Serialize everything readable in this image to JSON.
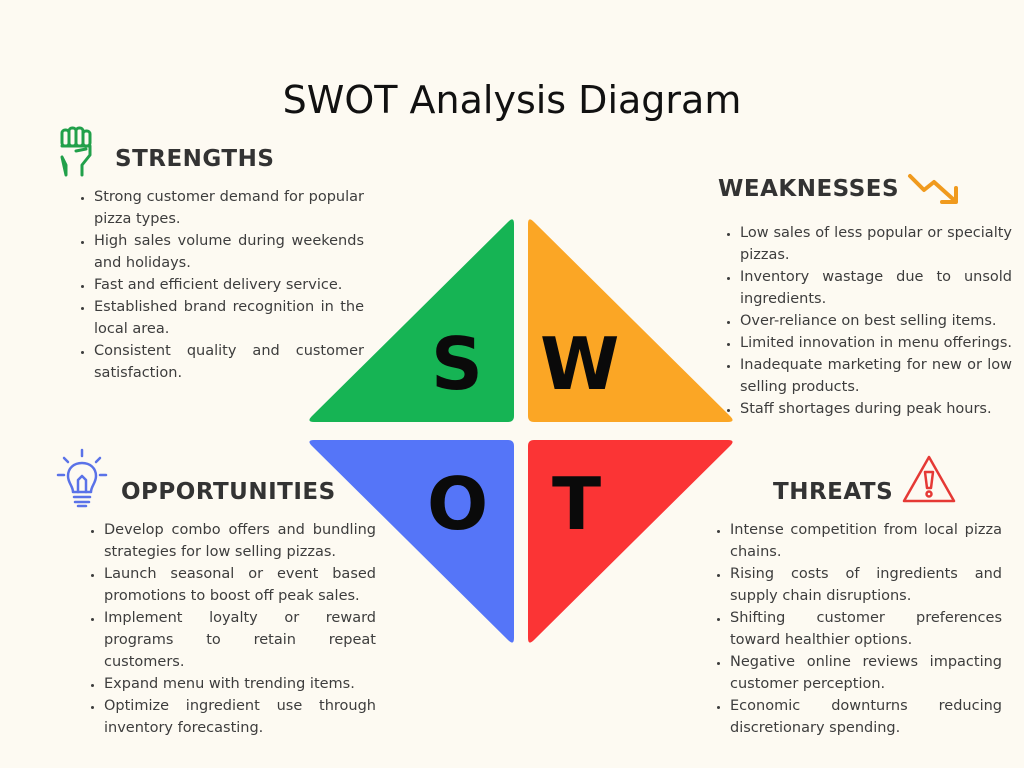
{
  "title": "SWOT Analysis Diagram",
  "colors": {
    "strengths": "#16b454",
    "weaknesses": "#fba625",
    "opportunities": "#5575f8",
    "threats": "#fb3435",
    "icon_strengths": "#21a04a",
    "icon_weaknesses": "#f09a1e",
    "icon_opportunities": "#5a72e8",
    "icon_threats": "#e53935"
  },
  "letters": {
    "s": "S",
    "w": "W",
    "o": "O",
    "t": "T"
  },
  "strengths": {
    "heading": "STRENGTHS",
    "icon": "raised-fist-icon",
    "items": [
      "Strong customer demand for popular pizza types.",
      "High sales volume during weekends and holidays.",
      "Fast and efficient delivery service.",
      "Established brand recognition in the local area.",
      "Consistent quality and customer satisfaction."
    ]
  },
  "weaknesses": {
    "heading": "WEAKNESSES",
    "icon": "trending-down-icon",
    "items": [
      "Low sales of less popular or specialty pizzas.",
      "Inventory wastage due to unsold ingredients.",
      "Over-reliance on best selling items.",
      "Limited innovation in menu offerings.",
      "Inadequate marketing for new or low selling products.",
      "Staff shortages during peak hours."
    ]
  },
  "opportunities": {
    "heading": "OPPORTUNITIES",
    "icon": "lightbulb-icon",
    "items": [
      "Develop combo offers and bundling strategies for low selling pizzas.",
      "Launch seasonal or event based promotions to boost off peak sales.",
      "Implement loyalty or reward programs to retain repeat customers.",
      "Expand menu with trending items.",
      "Optimize ingredient use through inventory forecasting."
    ]
  },
  "threats": {
    "heading": "THREATS",
    "icon": "warning-icon",
    "items": [
      "Intense competition from local pizza chains.",
      "Rising costs of ingredients and supply chain disruptions.",
      "Shifting customer preferences toward healthier options.",
      "Negative online reviews impacting customer perception.",
      "Economic downturns reducing discretionary spending."
    ]
  }
}
